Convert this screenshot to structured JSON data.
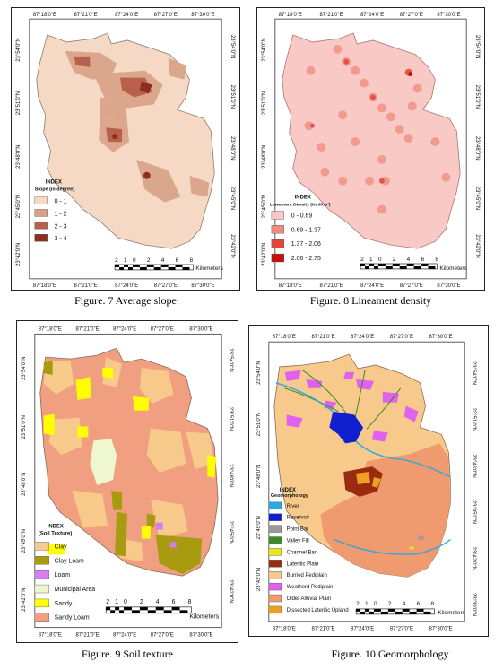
{
  "figures": [
    {
      "caption": "Figure. 7 Average slope",
      "legend": {
        "title": "INDEX",
        "subtitle": "Slope (in degree)",
        "items": [
          {
            "label": "0 - 1",
            "color": "#f5d9c4"
          },
          {
            "label": "1 - 2",
            "color": "#d9a287"
          },
          {
            "label": "2 - 3",
            "color": "#b8604b"
          },
          {
            "label": "3 - 4",
            "color": "#8e2c1f"
          }
        ]
      },
      "top_ticks": [
        "87°18'0\"E",
        "87°21'0\"E",
        "87°24'0\"E",
        "87°27'0\"E",
        "87°30'0\"E"
      ],
      "bottom_ticks": [
        "87°18'0\"E",
        "87°21'0\"E",
        "87°24'0\"E",
        "87°27'0\"E",
        "87°30'0\"E"
      ],
      "left_ticks": [
        "23°54'0\"N",
        "23°51'0\"N",
        "23°48'0\"N",
        "23°45'0\"N",
        "23°42'0\"N"
      ],
      "right_ticks": [
        "23°54'0\"N",
        "23°51'0\"N",
        "23°48'0\"N",
        "23°45'0\"N",
        "23°42'0\"N"
      ],
      "scale": {
        "numbers": [
          "2",
          "1",
          "0",
          "2",
          "4",
          "6",
          "8"
        ],
        "unit": "Kilometers"
      }
    },
    {
      "caption": "Figure. 8 Lineament density",
      "legend": {
        "title": "INDEX",
        "subtitle": "Lineament Density (Km/Km²)",
        "items": [
          {
            "label": "0 - 0.69",
            "color": "#f9c9c6"
          },
          {
            "label": "0.69 - 1.37",
            "color": "#f18b7f"
          },
          {
            "label": "1.37 - 2.06",
            "color": "#e4453a"
          },
          {
            "label": "2.06 - 2.75",
            "color": "#c80f0f"
          }
        ]
      },
      "top_ticks": [
        "87°18'0\"E",
        "87°21'0\"E",
        "87°24'0\"E",
        "87°27'0\"E",
        "87°30'0\"E"
      ],
      "bottom_ticks": [
        "87°18'0\"E",
        "87°21'0\"E",
        "87°24'0\"E",
        "87°27'0\"E",
        "87°30'0\"E"
      ],
      "left_ticks": [
        "23°54'0\"N",
        "23°51'0\"N",
        "23°48'0\"N",
        "23°45'0\"N",
        "23°42'0\"N"
      ],
      "right_ticks": [
        "23°54'0\"N",
        "23°51'0\"N",
        "23°48'0\"N",
        "23°45'0\"N",
        "23°42'0\"N"
      ],
      "scale": {
        "numbers": [
          "2",
          "1",
          "0",
          "2",
          "4",
          "6",
          "8"
        ],
        "unit": "Kilometers"
      }
    },
    {
      "caption": "Figure. 9 Soil texture",
      "legend": {
        "title": "INDEX",
        "subtitle": "(Soil Texture)",
        "items": [
          {
            "label": "Clay",
            "color": "#f7c98a"
          },
          {
            "label": "Clay Loam",
            "color": "#a99b0f"
          },
          {
            "label": "Loam",
            "color": "#d67ef0"
          },
          {
            "label": "Municipal Area",
            "color": "#eef7d0"
          },
          {
            "label": "Sandy",
            "color": "#ffff00"
          },
          {
            "label": "Sandy Loam",
            "color": "#f0a080"
          }
        ]
      },
      "top_ticks": [
        "87°18'0\"E",
        "87°21'0\"E",
        "87°24'0\"E",
        "87°27'0\"E",
        "87°30'0\"E"
      ],
      "bottom_ticks": [
        "87°18'0\"E",
        "87°21'0\"E",
        "87°24'0\"E",
        "87°27'0\"E",
        "87°30'0\"E"
      ],
      "left_ticks": [
        "23°54'0\"N",
        "23°51'0\"N",
        "23°48'0\"N",
        "23°45'0\"N",
        "23°42'0\"N"
      ],
      "right_ticks": [
        "23°54'0\"N",
        "23°51'0\"N",
        "23°48'0\"N",
        "23°45'0\"N",
        "23°42'0\"N"
      ],
      "scale": {
        "numbers": [
          "2",
          "1",
          "0",
          "2",
          "4",
          "6",
          "8"
        ],
        "unit": "Kilometers"
      }
    },
    {
      "caption": "Figure. 10 Geomorphology",
      "legend": {
        "title": "INDEX",
        "subtitle": "Geomorphology",
        "items": [
          {
            "label": "River",
            "color": "#2aa8e0"
          },
          {
            "label": "Reservoir",
            "color": "#1020d0"
          },
          {
            "label": "Point Bar",
            "color": "#9a9a9a"
          },
          {
            "label": "Valley Fill",
            "color": "#3a8a2a"
          },
          {
            "label": "Channel Bar",
            "color": "#e8e81a"
          },
          {
            "label": "Lateritic Plain",
            "color": "#9a2a10"
          },
          {
            "label": "Burried Pediplain",
            "color": "#f7c98a"
          },
          {
            "label": "Weatherd Pediplain",
            "color": "#e060f0"
          },
          {
            "label": "Older Alluvial Plain",
            "color": "#f09a70"
          },
          {
            "label": "Dissected Lateritic Upland",
            "color": "#f0a020"
          }
        ]
      },
      "top_ticks": [
        "87°18'0\"E",
        "87°21'0\"E",
        "87°24'0\"E",
        "87°27'0\"E",
        "87°30'0\"E"
      ],
      "bottom_ticks": [
        "87°18'0\"E",
        "87°21'0\"E",
        "87°24'0\"E",
        "87°27'0\"E",
        "87°30'0\"E"
      ],
      "left_ticks": [
        "23°54'0\"N",
        "23°51'0\"N",
        "23°48'0\"N",
        "23°45'0\"N",
        "23°42'0\"N"
      ],
      "right_ticks": [
        "23°54'0\"N",
        "23°51'0\"N",
        "23°48'0\"N",
        "23°45'0\"N",
        "23°42'0\"N",
        "23°39'0\"N"
      ],
      "scale": {
        "numbers": [
          "2",
          "1",
          "0",
          "2",
          "4",
          "6",
          "8"
        ],
        "unit": "Kilometers"
      }
    }
  ]
}
